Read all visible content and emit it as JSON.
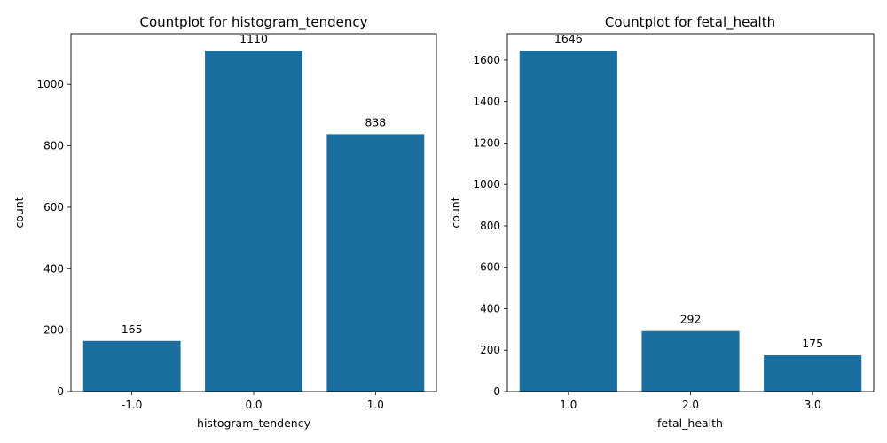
{
  "chart_data": [
    {
      "type": "bar",
      "title": "Countplot for histogram_tendency",
      "xlabel": "histogram_tendency",
      "ylabel": "count",
      "categories": [
        "-1.0",
        "0.0",
        "1.0"
      ],
      "values": [
        165,
        1110,
        838
      ],
      "data_labels": [
        "165",
        "1110",
        "838"
      ],
      "ylim": [
        0,
        1165
      ],
      "yticks": [
        0,
        200,
        400,
        600,
        800,
        1000
      ],
      "bar_color": "#1a6e9f",
      "grid": false
    },
    {
      "type": "bar",
      "title": "Countplot for fetal_health",
      "xlabel": "fetal_health",
      "ylabel": "count",
      "categories": [
        "1.0",
        "2.0",
        "3.0"
      ],
      "values": [
        1646,
        292,
        175
      ],
      "data_labels": [
        "1646",
        "292",
        "175"
      ],
      "ylim": [
        0,
        1728
      ],
      "yticks": [
        0,
        200,
        400,
        600,
        800,
        1000,
        1200,
        1400,
        1600
      ],
      "bar_color": "#1a6e9f",
      "grid": false
    }
  ]
}
